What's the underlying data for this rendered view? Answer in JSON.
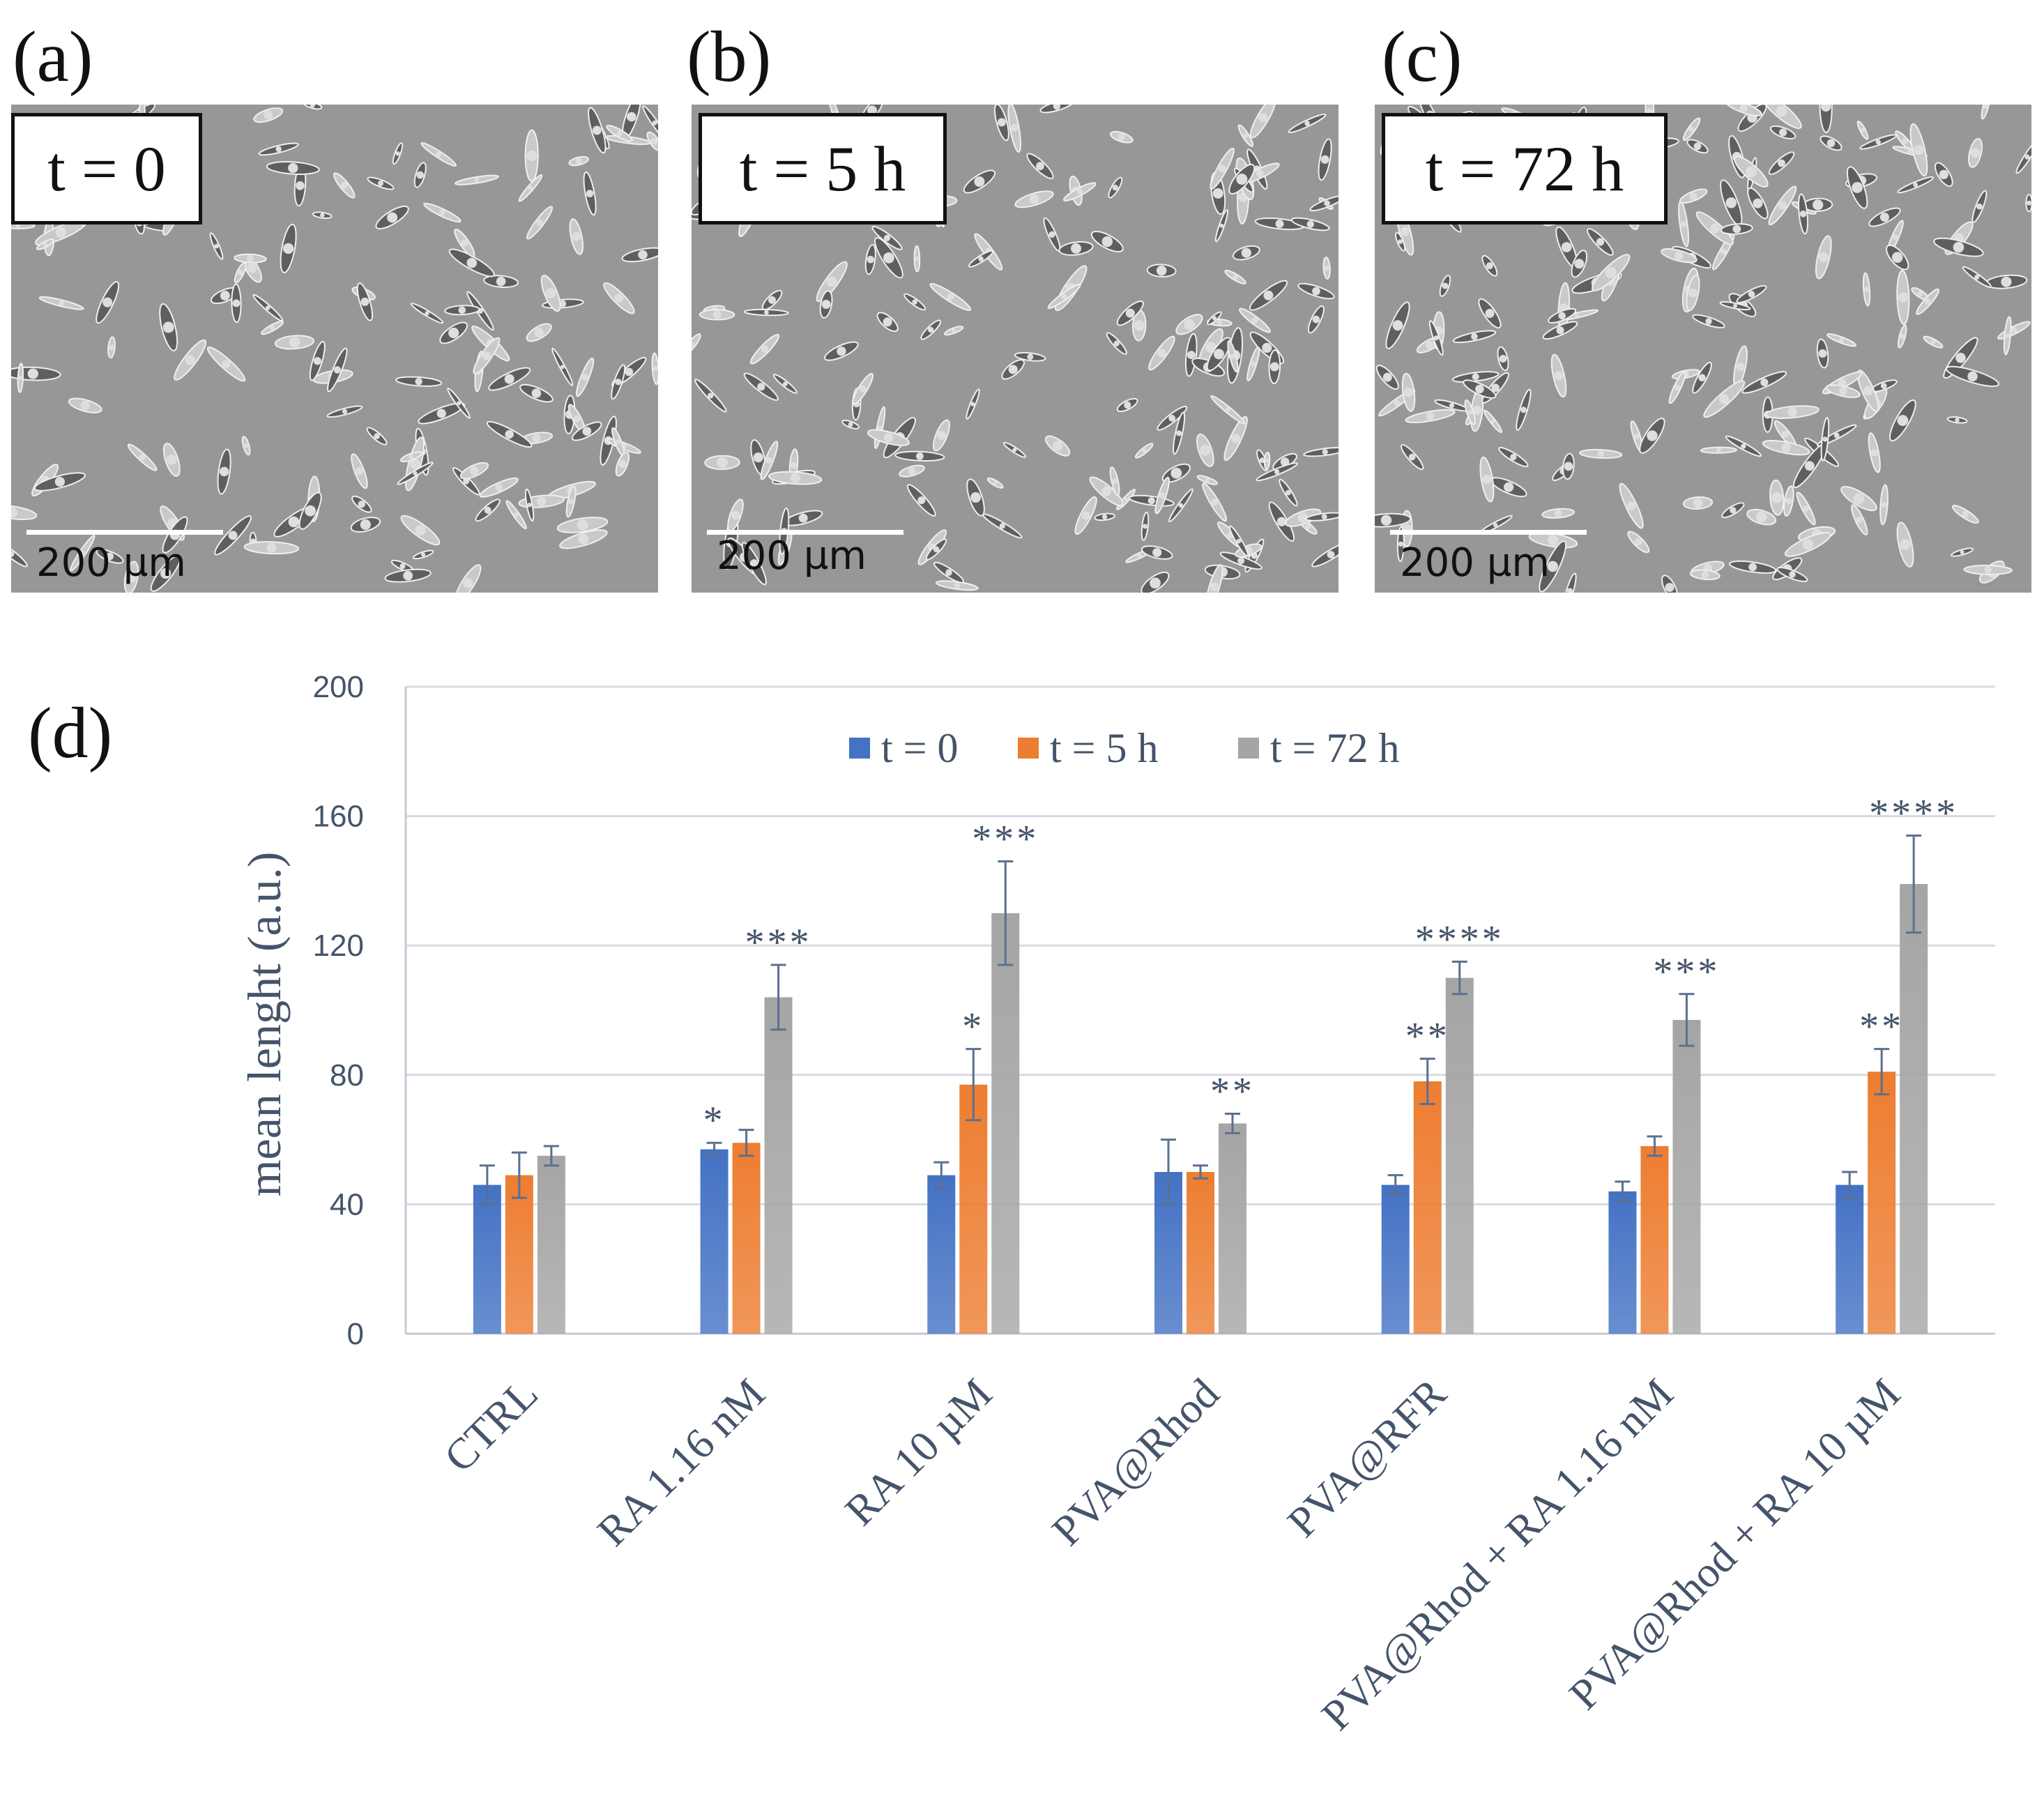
{
  "panels": [
    {
      "label": "(a)",
      "time": "t = 0",
      "scale": "200 µm"
    },
    {
      "label": "(b)",
      "time": "t = 5 h",
      "scale": "200 µm"
    },
    {
      "label": "(c)",
      "time": "t = 72 h",
      "scale": "200 µm"
    }
  ],
  "chart_panel_label": "(d)",
  "chart_data": {
    "type": "bar",
    "title": "",
    "xlabel": "",
    "ylabel": "mean lenght (a.u.)",
    "ylim": [
      0,
      200
    ],
    "yticks": [
      0,
      40,
      80,
      120,
      160,
      200
    ],
    "grid": true,
    "legend_position": "top-center",
    "categories": [
      "CTRL",
      "RA 1.16 nM",
      "RA 10 µM",
      "PVA@Rhod",
      "PVA@RFR",
      "PVA@Rhod + RA 1.16 nM",
      "PVA@Rhod + RA 10 µM"
    ],
    "series": [
      {
        "name": "t = 0",
        "color": "#4472c4",
        "values": [
          46,
          57,
          49,
          50,
          46,
          44,
          46
        ],
        "errors": [
          6,
          2,
          4,
          10,
          3,
          3,
          4
        ],
        "significance": [
          "",
          "*",
          "",
          "",
          "",
          "",
          ""
        ]
      },
      {
        "name": "t = 5 h",
        "color": "#ed7d31",
        "values": [
          49,
          59,
          77,
          50,
          78,
          58,
          81
        ],
        "errors": [
          7,
          4,
          11,
          2,
          7,
          3,
          7
        ],
        "significance": [
          "",
          "",
          "*",
          "",
          "**",
          "",
          "**"
        ]
      },
      {
        "name": "t = 72 h",
        "color": "#a5a5a5",
        "values": [
          55,
          104,
          130,
          65,
          110,
          97,
          139
        ],
        "errors": [
          3,
          10,
          16,
          3,
          5,
          8,
          15
        ],
        "significance": [
          "",
          "***",
          "***",
          "**",
          "****",
          "***",
          "****"
        ]
      }
    ]
  }
}
